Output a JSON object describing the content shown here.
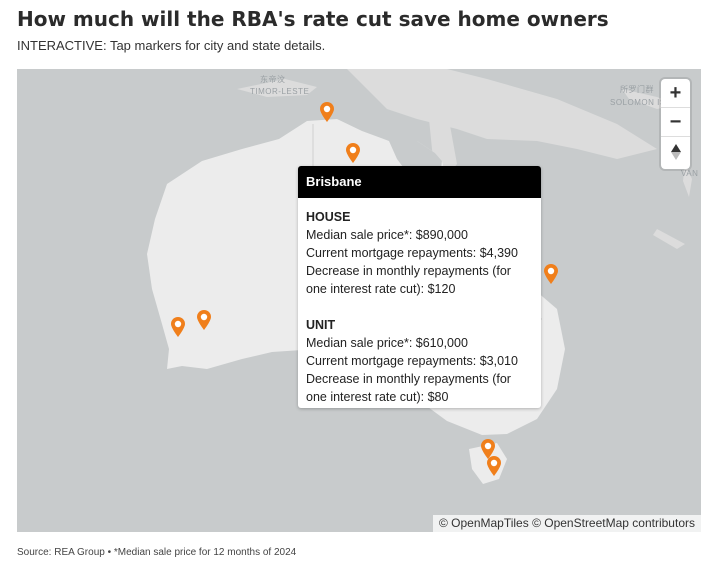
{
  "title": "How much will the RBA's rate cut save home owners",
  "subtitle": "INTERACTIVE: Tap markers for city and state details.",
  "map": {
    "labels": {
      "timor_zh": "东帝汶",
      "timor": "TIMOR-LESTE",
      "solomon_zh": "所罗门群",
      "solomon": "SOLOMON IS",
      "vanuatu": "VAN"
    },
    "zoom_in": "+",
    "zoom_out": "−",
    "reset": "▲",
    "attribution": "© OpenMapTiles © OpenStreetMap contributors",
    "marker_color": "#f07f1b",
    "marker_count": 9
  },
  "popup": {
    "city": "Brisbane",
    "house": {
      "heading": "HOUSE",
      "median": "Median sale price*: $890,000",
      "repay": "Current mortgage repayments: $4,390",
      "decrease1": "Decrease in monthly repayments (for",
      "decrease2": "one interest rate cut): $120"
    },
    "unit": {
      "heading": "UNIT",
      "median": "Median sale price*: $610,000",
      "repay": "Current mortgage repayments: $3,010",
      "decrease1": "Decrease in monthly repayments (for",
      "decrease2": "one interest rate cut): $80"
    }
  },
  "source": "Source: REA Group • *Median sale price for 12 months of 2024"
}
